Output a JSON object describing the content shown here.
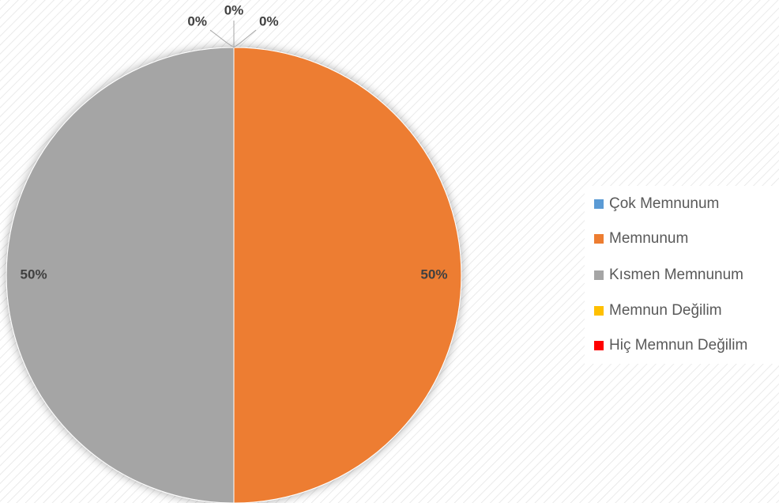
{
  "chart_data": {
    "type": "pie",
    "categories": [
      "Çok Memnunum",
      "Memnunum",
      "Kısmen Memnunum",
      "Memnun Değilim",
      "Hiç Memnun Değilim"
    ],
    "values": [
      0,
      50,
      50,
      0,
      0
    ],
    "value_labels": [
      "0%",
      "50%",
      "50%",
      "0%",
      "0%"
    ],
    "colors": [
      "#5b9bd5",
      "#ed7d31",
      "#a5a5a5",
      "#ffc000",
      "#ff0000"
    ],
    "legend": "right"
  }
}
